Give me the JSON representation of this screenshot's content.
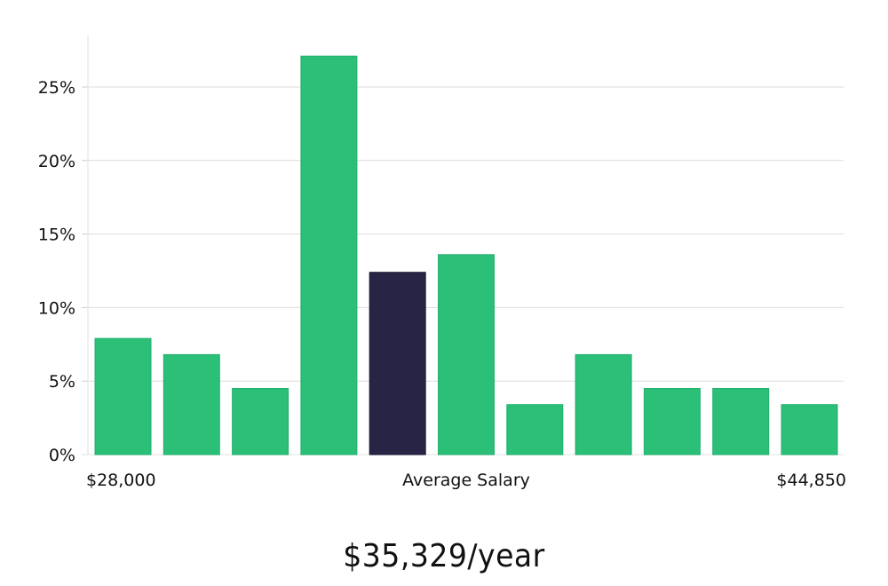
{
  "chart_data": {
    "type": "bar",
    "title": "",
    "xlabel": "Average Salary",
    "ylabel": "",
    "ylim": [
      0,
      28
    ],
    "yticks": [
      0,
      5,
      10,
      15,
      20,
      25
    ],
    "ytick_labels": [
      "0%",
      "5%",
      "10%",
      "15%",
      "20%",
      "25%"
    ],
    "x_min_label": "$28,000",
    "x_center_label": "Average Salary",
    "x_max_label": "$44,850",
    "values": [
      7.9,
      6.8,
      4.5,
      27.1,
      12.4,
      13.6,
      3.4,
      6.8,
      4.5,
      4.5,
      3.4
    ],
    "highlight_index": 4,
    "colors": {
      "bar": "#2bbf78",
      "highlight": "#282445",
      "grid": "#dddddd",
      "text": "#111111"
    }
  },
  "salary": {
    "text": "$35,329/year"
  }
}
